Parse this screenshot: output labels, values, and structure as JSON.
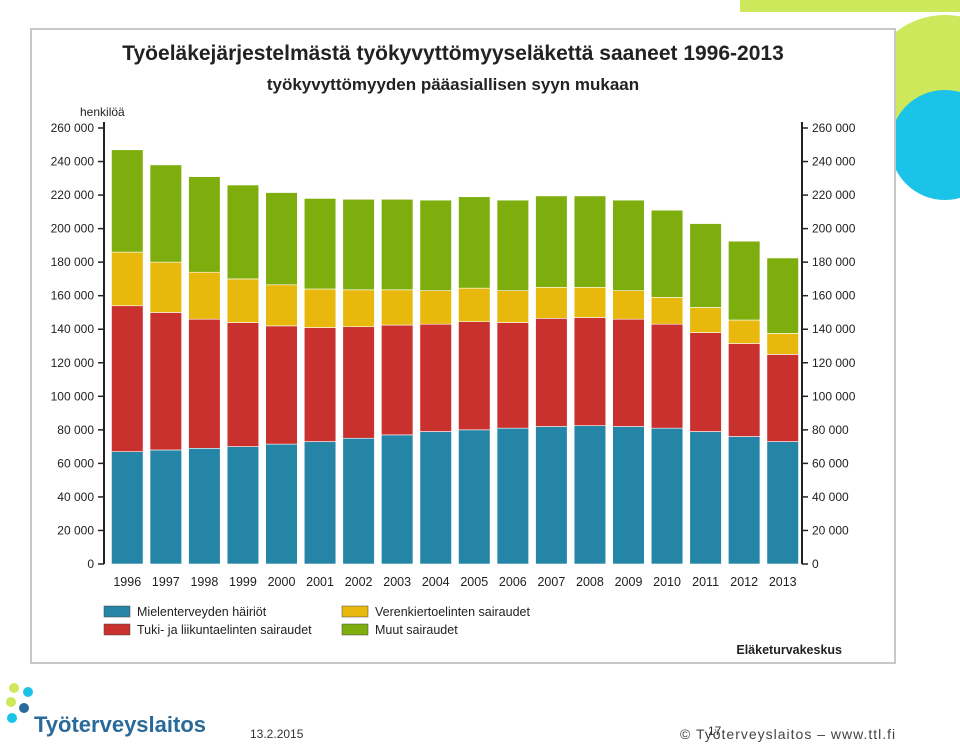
{
  "slide": {
    "date": "13.2.2015",
    "page_number": "17",
    "copyright": "© Työterveyslaitos  –  www.ttl.fi",
    "logo_text": "Työterveyslaitos",
    "colors": {
      "lime": "#cde85a",
      "cyan": "#1bc3e8",
      "logo_blue": "#2a6a9b"
    }
  },
  "chart_data": {
    "type": "bar",
    "stacked": true,
    "title": "Työeläkejärjestelmästä työkyvyttömyyseläkettä saaneet 1996-2013",
    "subtitle": "työkyvyttömyyden pääasiallisen syyn mukaan",
    "ylabel": "henkilöä",
    "source": "Eläketurvakeskus",
    "ylim": [
      0,
      260000
    ],
    "yticks": [
      "0",
      "20 000",
      "40 000",
      "60 000",
      "80 000",
      "100 000",
      "120 000",
      "140 000",
      "160 000",
      "180 000",
      "200 000",
      "220 000",
      "240 000",
      "260 000"
    ],
    "grid": false,
    "legend_position": "bottom",
    "categories": [
      "1996",
      "1997",
      "1998",
      "1999",
      "2000",
      "2001",
      "2002",
      "2003",
      "2004",
      "2005",
      "2006",
      "2007",
      "2008",
      "2009",
      "2010",
      "2011",
      "2012",
      "2013"
    ],
    "series": [
      {
        "name": "Mielenterveyden häiriöt",
        "color": "#2485a6",
        "values": [
          67000,
          68000,
          69000,
          70000,
          71500,
          73000,
          75000,
          77000,
          79000,
          80000,
          81000,
          82000,
          82500,
          82000,
          81000,
          79000,
          76000,
          73000
        ]
      },
      {
        "name": "Tuki- ja liikuntaelinten sairaudet",
        "color": "#c9312f",
        "values": [
          87000,
          82000,
          77000,
          74000,
          70500,
          68000,
          66500,
          65500,
          64000,
          64500,
          63000,
          64500,
          64500,
          64000,
          62000,
          59000,
          55500,
          52000
        ]
      },
      {
        "name": "Verenkiertoelinten sairaudet",
        "color": "#e8b80c",
        "values": [
          32000,
          30000,
          28000,
          26000,
          24500,
          23000,
          22000,
          21000,
          20000,
          20000,
          19000,
          18500,
          18000,
          17000,
          16000,
          15000,
          14000,
          12500
        ]
      },
      {
        "name": "Muut sairaudet",
        "color": "#7eae0e",
        "values": [
          61000,
          58000,
          57000,
          56000,
          55000,
          54000,
          54000,
          54000,
          54000,
          54500,
          54000,
          54500,
          54500,
          54000,
          52000,
          50000,
          47000,
          45000
        ]
      }
    ]
  }
}
